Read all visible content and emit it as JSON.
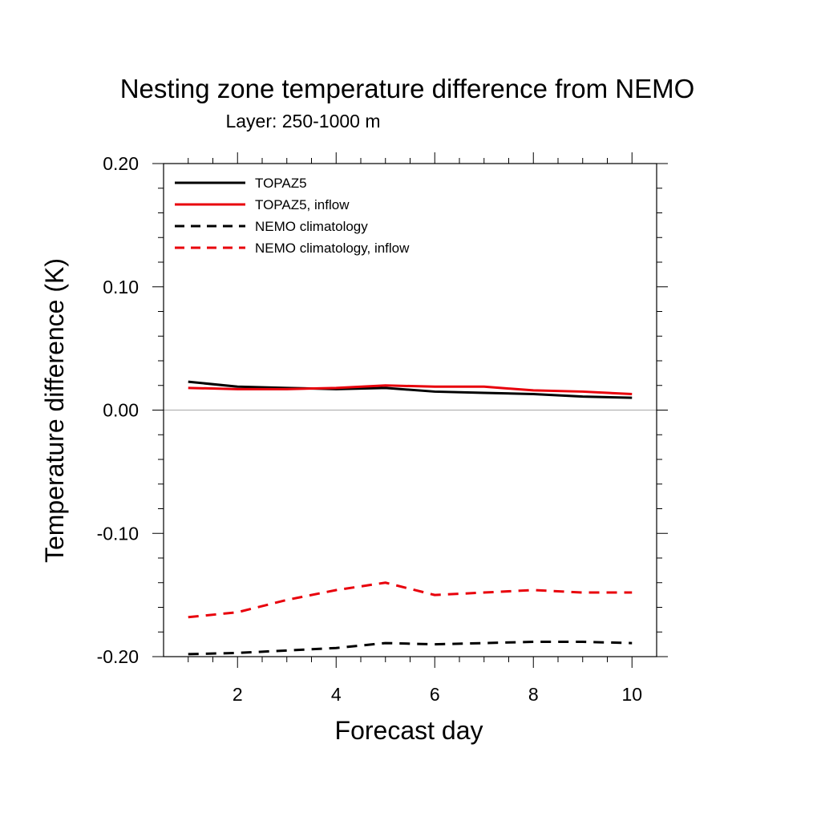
{
  "chart_data": {
    "type": "line",
    "title": "Nesting zone temperature difference from NEMO",
    "subtitle": "Layer: 250-1000 m",
    "xlabel": "Forecast day",
    "ylabel": "Temperature difference (K)",
    "xlim": [
      0.5,
      10.5
    ],
    "ylim": [
      -0.2,
      0.2
    ],
    "x_ticks": [
      2,
      4,
      6,
      8,
      10
    ],
    "x_tick_labels": [
      "2",
      "4",
      "6",
      "8",
      "10"
    ],
    "y_ticks": [
      -0.2,
      -0.1,
      0.0,
      0.1,
      0.2
    ],
    "y_tick_labels": [
      "-0.20",
      "-0.10",
      "0.00",
      "0.10",
      "0.20"
    ],
    "zero_reference_line": true,
    "grid": false,
    "legend_position": "top-left",
    "x": [
      1,
      2,
      3,
      4,
      5,
      6,
      7,
      8,
      9,
      10
    ],
    "series": [
      {
        "name": "TOPAZ5",
        "color": "#000000",
        "dash": "solid",
        "values": [
          0.023,
          0.019,
          0.018,
          0.017,
          0.018,
          0.015,
          0.014,
          0.013,
          0.011,
          0.01
        ]
      },
      {
        "name": "TOPAZ5, inflow",
        "color": "#e8000b",
        "dash": "solid",
        "values": [
          0.018,
          0.017,
          0.017,
          0.018,
          0.02,
          0.019,
          0.019,
          0.016,
          0.015,
          0.013
        ]
      },
      {
        "name": "NEMO climatology",
        "color": "#000000",
        "dash": "dashed",
        "values": [
          -0.198,
          -0.197,
          -0.195,
          -0.193,
          -0.189,
          -0.19,
          -0.189,
          -0.188,
          -0.188,
          -0.189
        ]
      },
      {
        "name": "NEMO climatology, inflow",
        "color": "#e8000b",
        "dash": "dashed",
        "values": [
          -0.168,
          -0.164,
          -0.154,
          -0.146,
          -0.14,
          -0.15,
          -0.148,
          -0.146,
          -0.148,
          -0.148
        ]
      }
    ]
  }
}
